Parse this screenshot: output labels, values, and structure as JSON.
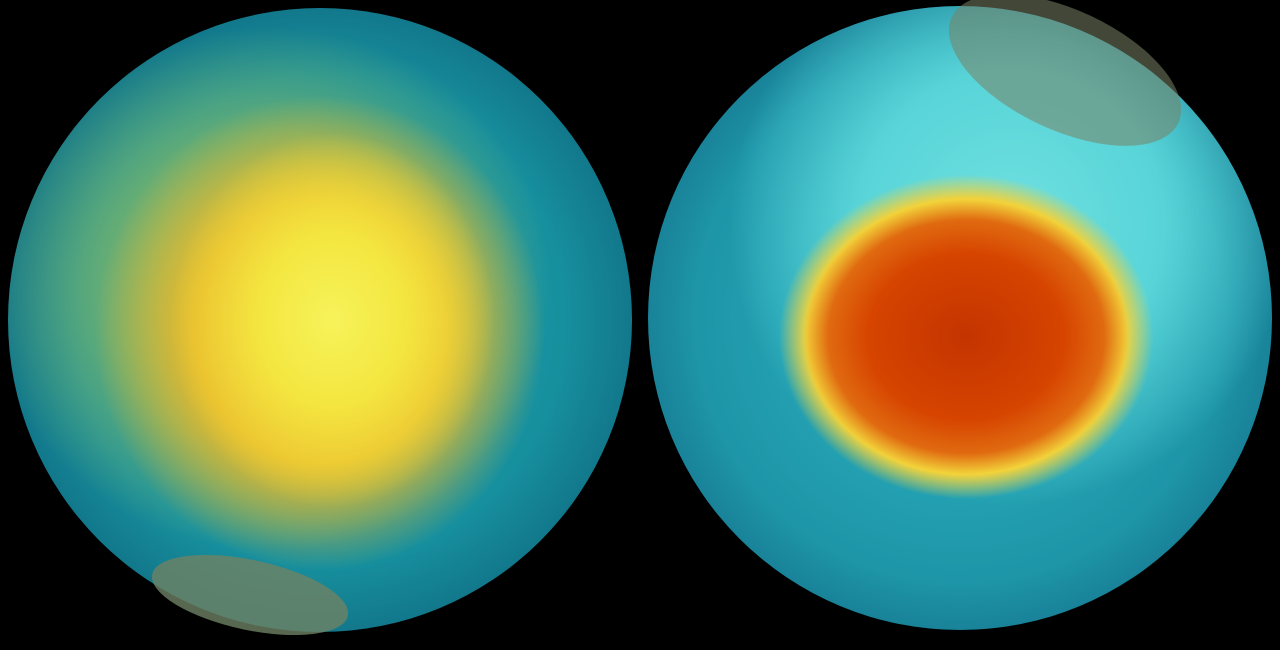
{
  "image": {
    "left_globe": {
      "subject": "south-pole-ozone-left",
      "dominant_colors": [
        "#f4e640",
        "#f0c030",
        "#1aa3b0",
        "#0b4b66"
      ]
    },
    "right_globe": {
      "subject": "south-pole-ozone-right",
      "dominant_colors": [
        "#c43400",
        "#f2d23a",
        "#6fe0e0",
        "#136f88"
      ]
    },
    "background": "#000000"
  }
}
